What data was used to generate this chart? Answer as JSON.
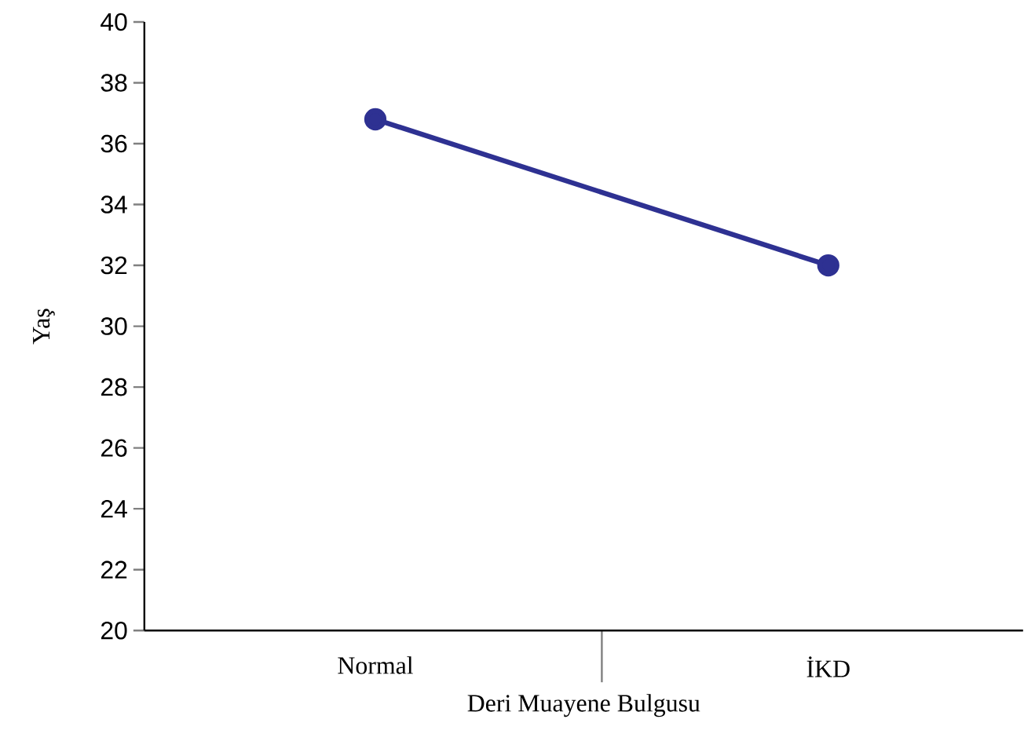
{
  "chart_data": {
    "type": "line",
    "xlabel": "Deri Muayene Bulgusu",
    "ylabel": "Yaş",
    "categories": [
      "Normal",
      "İKD"
    ],
    "series": [
      {
        "color": "#2e3192",
        "values": [
          36.8,
          32.0
        ]
      }
    ],
    "ylim": [
      20,
      40
    ],
    "yticks": [
      20,
      22,
      24,
      26,
      28,
      30,
      32,
      34,
      36,
      38,
      40
    ],
    "marker": "circle",
    "line_style": "solid",
    "grid": false,
    "legend": false
  }
}
